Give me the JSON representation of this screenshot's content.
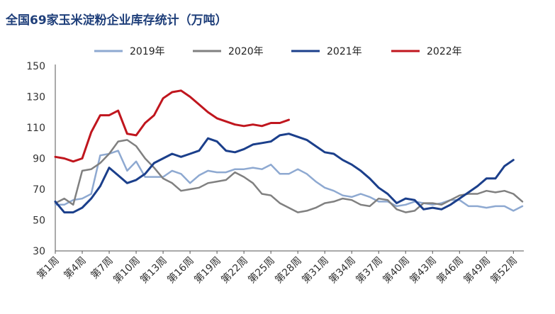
{
  "title": "全国69家玉米淀粉企业库存统计（万吨）",
  "chart_data": {
    "type": "line",
    "title": "全国69家玉米淀粉企业库存统计（万吨）",
    "xlabel": "",
    "ylabel": "",
    "ylim": [
      30,
      150
    ],
    "yticks": [
      30,
      50,
      70,
      90,
      110,
      130,
      150
    ],
    "grid": false,
    "legend_position": "top",
    "x_tick_labels": [
      "第1周",
      "第4周",
      "第7周",
      "第10周",
      "第13周",
      "第16周",
      "第19周",
      "第22周",
      "第25周",
      "第28周",
      "第31周",
      "第34周",
      "第37周",
      "第40周",
      "第43周",
      "第46周",
      "第49周",
      "第52周"
    ],
    "x_tick_weeks": [
      1,
      4,
      7,
      10,
      13,
      16,
      19,
      22,
      25,
      28,
      31,
      34,
      37,
      40,
      43,
      46,
      49,
      52
    ],
    "x": [
      1,
      2,
      3,
      4,
      5,
      6,
      7,
      8,
      9,
      10,
      11,
      12,
      13,
      14,
      15,
      16,
      17,
      18,
      19,
      20,
      21,
      22,
      23,
      24,
      25,
      26,
      27,
      28,
      29,
      30,
      31,
      32,
      33,
      34,
      35,
      36,
      37,
      38,
      39,
      40,
      41,
      42,
      43,
      44,
      45,
      46,
      47,
      48,
      49,
      50,
      51,
      52,
      53
    ],
    "series": [
      {
        "name": "2019年",
        "color": "#8ea9d1",
        "values": [
          60,
          60,
          63,
          64,
          67,
          92,
          93,
          95,
          82,
          88,
          78,
          78,
          78,
          82,
          80,
          74,
          79,
          82,
          81,
          81,
          83,
          83,
          84,
          83,
          86,
          80,
          80,
          83,
          80,
          75,
          71,
          69,
          66,
          65,
          67,
          65,
          62,
          62,
          59,
          60,
          62,
          61,
          60,
          61,
          63,
          63,
          59,
          59,
          58,
          59,
          59,
          56,
          59
        ]
      },
      {
        "name": "2020年",
        "color": "#808080",
        "values": [
          61,
          64,
          60,
          82,
          83,
          87,
          93,
          101,
          102,
          98,
          90,
          84,
          77,
          74,
          69,
          70,
          71,
          74,
          75,
          76,
          81,
          78,
          74,
          67,
          66,
          61,
          58,
          55,
          56,
          58,
          61,
          62,
          64,
          63,
          60,
          59,
          64,
          63,
          57,
          55,
          56,
          61,
          61,
          60,
          63,
          66,
          67,
          67,
          69,
          68,
          69,
          67,
          62
        ]
      },
      {
        "name": "2021年",
        "color": "#1b3f8b",
        "values": [
          62,
          55,
          55,
          58,
          64,
          72,
          84,
          79,
          74,
          76,
          80,
          87,
          90,
          93,
          91,
          93,
          95,
          103,
          101,
          95,
          94,
          96,
          99,
          100,
          101,
          105,
          106,
          104,
          102,
          98,
          94,
          93,
          89,
          86,
          82,
          77,
          71,
          67,
          61,
          64,
          63,
          57,
          58,
          57,
          60,
          64,
          68,
          72,
          77,
          77,
          85,
          89,
          null
        ]
      },
      {
        "name": "2022年",
        "color": "#c0161e",
        "values": [
          91,
          90,
          88,
          90,
          107,
          118,
          118,
          121,
          106,
          105,
          113,
          118,
          129,
          133,
          134,
          130,
          125,
          120,
          116,
          114,
          112,
          111,
          112,
          111,
          113,
          113,
          115,
          null,
          null,
          null,
          null,
          null,
          null,
          null,
          null,
          null,
          null,
          null,
          null,
          null,
          null,
          null,
          null,
          null,
          null,
          null,
          null,
          null,
          null,
          null,
          null,
          null,
          null
        ]
      }
    ]
  }
}
